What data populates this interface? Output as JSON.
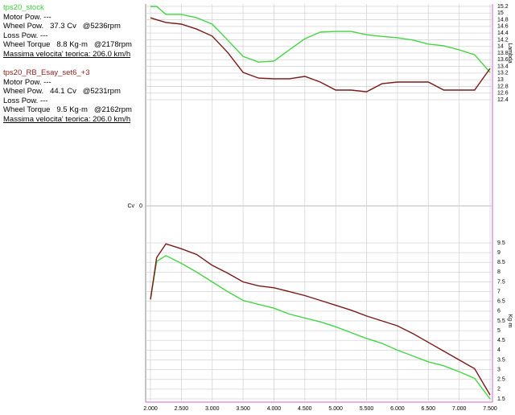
{
  "info": {
    "blocks": [
      {
        "name": "tps20_stock",
        "color": "#3ccf3c",
        "lines": [
          "Motor Pow. ---",
          "Wheel Pow.   37.3 Cv   @5236rpm",
          "Loss Pow. ---",
          "Wheel Torque   8.8 Kg·m   @2178rpm",
          "Massima velocita' teorica: 206.0 km/h"
        ]
      },
      {
        "name": "tps20_RB_Esay_set6_+3",
        "color": "#8b1c1c",
        "lines": [
          "Motor Pow. ---",
          "Wheel Pow.   44.1 Cv   @5231rpm",
          "Loss Pow. ---",
          "Wheel Torque   9.5 Kg·m   @2162rpm",
          "Massima velocita' teorica: 206.0 km/h"
        ]
      }
    ]
  },
  "chart_data": [
    {
      "type": "line",
      "y2label": "Lambda",
      "ylabel": "Cv",
      "yticks": [
        0
      ],
      "x": [
        2000,
        2100,
        2250,
        2500,
        2750,
        3000,
        3250,
        3500,
        3750,
        4000,
        4250,
        4500,
        4750,
        5000,
        5250,
        5500,
        5750,
        6000,
        6250,
        6500,
        6750,
        7000,
        7250,
        7500
      ],
      "xlim": [
        2000,
        7500
      ],
      "y2lim": [
        12.4,
        15.2
      ],
      "y2ticks": [
        15.2,
        15,
        14.8,
        14.6,
        14.4,
        14.2,
        14,
        13.8,
        13.6,
        13.4,
        13.2,
        13,
        12.8,
        12.6,
        12.4
      ],
      "series": [
        {
          "color": "#44d444",
          "axis": "y2",
          "values": [
            15.2,
            15.2,
            14.96,
            14.96,
            14.86,
            14.67,
            14.19,
            13.7,
            13.53,
            13.56,
            13.9,
            14.23,
            14.43,
            14.45,
            14.45,
            14.35,
            14.3,
            14.26,
            14.19,
            14.07,
            14.02,
            13.9,
            13.75,
            13.22
          ]
        },
        {
          "color": "#7a1818",
          "axis": "y2",
          "values": [
            14.86,
            14.8,
            14.72,
            14.67,
            14.52,
            14.31,
            13.82,
            13.22,
            13.05,
            13.03,
            13.03,
            13.1,
            12.93,
            12.69,
            12.69,
            12.64,
            12.88,
            12.93,
            12.93,
            12.93,
            12.69,
            12.69,
            12.69,
            13.34
          ]
        }
      ]
    },
    {
      "type": "line",
      "y2label": "Kg·m",
      "x": [
        2000,
        2100,
        2250,
        2500,
        2750,
        3000,
        3250,
        3500,
        3750,
        4000,
        4250,
        4500,
        4750,
        5000,
        5250,
        5500,
        5750,
        6000,
        6250,
        6500,
        6750,
        7000,
        7250,
        7500
      ],
      "xlim": [
        2000,
        7500
      ],
      "xticks": [
        {
          "value": 2000,
          "label": "2.000"
        },
        {
          "value": 2500,
          "label": "2.500"
        },
        {
          "value": 3000,
          "label": "3.000"
        },
        {
          "value": 3500,
          "label": "3.500"
        },
        {
          "value": 4000,
          "label": "4.000"
        },
        {
          "value": 4500,
          "label": "4.500"
        },
        {
          "value": 5000,
          "label": "5.000"
        },
        {
          "value": 5500,
          "label": "5.500"
        },
        {
          "value": 6000,
          "label": "6.000"
        },
        {
          "value": 6500,
          "label": "6.500"
        },
        {
          "value": 7000,
          "label": "7.000"
        },
        {
          "value": 7500,
          "label": "7.500"
        }
      ],
      "y2lim": [
        1.5,
        9.5
      ],
      "y2ticks": [
        9.5,
        9,
        8.5,
        8,
        7.5,
        7,
        6.5,
        6,
        5.5,
        5,
        4.5,
        4,
        3.5,
        3,
        2.5,
        2,
        1.5
      ],
      "series": [
        {
          "color": "#44d444",
          "axis": "y2",
          "values": [
            6.6,
            8.55,
            8.85,
            8.45,
            8.0,
            7.5,
            7.0,
            6.55,
            6.35,
            6.15,
            5.85,
            5.65,
            5.45,
            5.2,
            4.9,
            4.6,
            4.35,
            4.0,
            3.7,
            3.4,
            3.2,
            2.9,
            2.55,
            1.5
          ]
        },
        {
          "color": "#7a1818",
          "axis": "y2",
          "values": [
            6.6,
            8.75,
            9.45,
            9.2,
            8.9,
            8.35,
            7.95,
            7.5,
            7.3,
            7.2,
            7.0,
            6.8,
            6.55,
            6.3,
            6.05,
            5.75,
            5.5,
            5.25,
            4.85,
            4.4,
            3.95,
            3.5,
            3.05,
            1.7
          ]
        }
      ]
    }
  ]
}
